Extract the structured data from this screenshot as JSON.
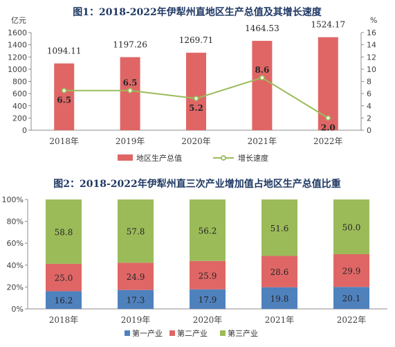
{
  "chart_data": [
    {
      "type": "bar",
      "title": "图1：2018-2022年伊犁州直地区生产总值及其增长速度",
      "categories": [
        "2018年",
        "2019年",
        "2020年",
        "2021年",
        "2022年"
      ],
      "left_axis_unit": "亿元",
      "right_axis_unit": "%",
      "left_ylim": [
        0,
        1600
      ],
      "left_ticks": [
        "0",
        "200",
        "400",
        "600",
        "800",
        "1000",
        "1200",
        "1400",
        "1600"
      ],
      "right_ylim": [
        0,
        16
      ],
      "right_ticks": [
        "0",
        "2",
        "4",
        "6",
        "8",
        "10",
        "12",
        "14",
        "16"
      ],
      "series": [
        {
          "name": "地区生产总值",
          "type": "bar",
          "axis": "left",
          "color": "#e06666",
          "values": [
            1094.11,
            1197.26,
            1269.71,
            1464.53,
            1524.17
          ],
          "labels": [
            "1094.11",
            "1197.26",
            "1269.71",
            "1464.53",
            "1524.17"
          ]
        },
        {
          "name": "增长速度",
          "type": "line",
          "axis": "right",
          "color": "#9bbb59",
          "values": [
            6.5,
            6.5,
            5.2,
            8.6,
            2.0
          ],
          "labels": [
            "6.5",
            "6.5",
            "5.2",
            "8.6",
            "2.0"
          ]
        }
      ],
      "legend": "bottom",
      "grid": false
    },
    {
      "type": "bar",
      "stacked": true,
      "title": "图2：2018-2022年伊犁州直三次产业增加值占地区生产总值比重",
      "categories": [
        "2018年",
        "2019年",
        "2020年",
        "2021年",
        "2022年"
      ],
      "ylim": [
        0,
        100
      ],
      "y_ticks": [
        "0%",
        "20%",
        "40%",
        "60%",
        "80%",
        "100%"
      ],
      "series": [
        {
          "name": "第一产业",
          "color": "#4f81bd",
          "values": [
            16.2,
            17.3,
            17.9,
            19.8,
            20.1
          ],
          "labels": [
            "16.2",
            "17.3",
            "17.9",
            "19.8",
            "20.1"
          ]
        },
        {
          "name": "第二产业",
          "color": "#e06666",
          "values": [
            25.0,
            24.9,
            25.9,
            28.6,
            29.9
          ],
          "labels": [
            "25.0",
            "24.9",
            "25.9",
            "28.6",
            "29.9"
          ]
        },
        {
          "name": "第三产业",
          "color": "#9bbb59",
          "values": [
            58.8,
            57.8,
            56.2,
            51.6,
            50.0
          ],
          "labels": [
            "58.8",
            "57.8",
            "56.2",
            "51.6",
            "50.0"
          ]
        }
      ],
      "legend": "bottom",
      "grid": false
    }
  ]
}
